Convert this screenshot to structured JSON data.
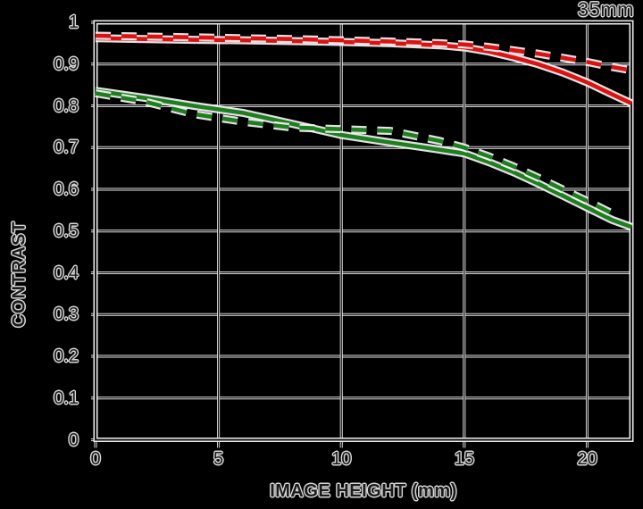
{
  "chart_data": {
    "type": "line",
    "title": "35mm",
    "xlabel": "IMAGE HEIGHT (mm)",
    "ylabel": "CONTRAST",
    "xlim": [
      0,
      21.8
    ],
    "ylim": [
      0,
      1
    ],
    "grid": true,
    "legend_position": "none",
    "x_ticks": [
      {
        "value": 0,
        "label": "0"
      },
      {
        "value": 5,
        "label": "5"
      },
      {
        "value": 10,
        "label": "10"
      },
      {
        "value": 15,
        "label": "15"
      },
      {
        "value": 20,
        "label": "20"
      }
    ],
    "y_ticks": [
      {
        "value": 0,
        "label": "0"
      },
      {
        "value": 0.1,
        "label": "0.1"
      },
      {
        "value": 0.2,
        "label": "0.2"
      },
      {
        "value": 0.3,
        "label": "0.3"
      },
      {
        "value": 0.4,
        "label": "0.4"
      },
      {
        "value": 0.5,
        "label": "0.5"
      },
      {
        "value": 0.6,
        "label": "0.6"
      },
      {
        "value": 0.7,
        "label": "0.7"
      },
      {
        "value": 0.8,
        "label": "0.8"
      },
      {
        "value": 0.9,
        "label": "0.9"
      },
      {
        "value": 1,
        "label": "1"
      }
    ],
    "series": [
      {
        "name": "red-solid",
        "color": "#dd1111",
        "style": "solid",
        "x": [
          0,
          2,
          4,
          6,
          8,
          10,
          12,
          14,
          15,
          16,
          17,
          18,
          19,
          20,
          21,
          21.8
        ],
        "y": [
          0.962,
          0.96,
          0.958,
          0.957,
          0.955,
          0.953,
          0.95,
          0.945,
          0.94,
          0.93,
          0.916,
          0.9,
          0.88,
          0.856,
          0.828,
          0.806
        ]
      },
      {
        "name": "green-solid",
        "color": "#1f7e1f",
        "style": "solid",
        "x": [
          0,
          2,
          4,
          6,
          8,
          10,
          12,
          14,
          15,
          16,
          17,
          18,
          19,
          20,
          21,
          21.8
        ],
        "y": [
          0.836,
          0.819,
          0.8,
          0.783,
          0.757,
          0.73,
          0.712,
          0.695,
          0.686,
          0.665,
          0.641,
          0.614,
          0.585,
          0.556,
          0.527,
          0.51
        ]
      },
      {
        "name": "red-dashed",
        "color": "#dd1111",
        "style": "dashed",
        "x": [
          0,
          2,
          4,
          6,
          8,
          10,
          12,
          14,
          15,
          16,
          17,
          18,
          19,
          20,
          21,
          21.8
        ],
        "y": [
          0.968,
          0.966,
          0.964,
          0.962,
          0.96,
          0.957,
          0.954,
          0.95,
          0.947,
          0.941,
          0.933,
          0.925,
          0.915,
          0.905,
          0.893,
          0.885
        ]
      },
      {
        "name": "green-dashed",
        "color": "#1f7e1f",
        "style": "dashed",
        "x": [
          0,
          2,
          4,
          6,
          8,
          10,
          12,
          14,
          15,
          16,
          17,
          18,
          19,
          20,
          21.2
        ],
        "y": [
          0.83,
          0.81,
          0.78,
          0.762,
          0.748,
          0.744,
          0.74,
          0.716,
          0.7,
          0.679,
          0.655,
          0.628,
          0.6,
          0.572,
          0.537
        ]
      }
    ]
  },
  "colors": {
    "background": "#000000",
    "grid_core": "#141414",
    "grid_halo": "#ededed",
    "curve_halo": "#f5f5f5",
    "text_fill": "#1b1b1b",
    "red_series": "#dd1111",
    "green_series": "#1f7e1f"
  }
}
